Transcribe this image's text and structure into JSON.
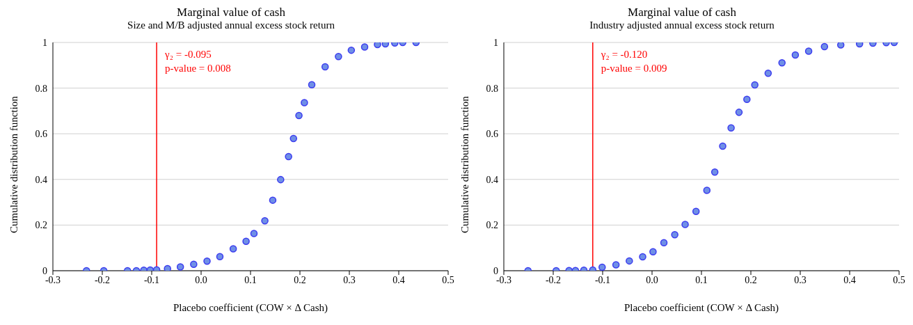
{
  "chart_data": [
    {
      "type": "scatter",
      "title": "Marginal  value of cash",
      "subtitle": "Size and M/B adjusted annual excess stock return",
      "xlabel": "Placebo coefficient (COW × Δ Cash)",
      "ylabel": "Cumulative distribution function",
      "xlim": [
        -0.3,
        0.5
      ],
      "xticks": [
        -0.3,
        -0.2,
        -0.1,
        {
          "value": 0,
          "label": "0.0"
        },
        0.1,
        0.2,
        0.3,
        0.4,
        0.5
      ],
      "ylim": [
        0,
        1
      ],
      "yticks": [
        0,
        0.2,
        0.4,
        0.6,
        0.8,
        1
      ],
      "grid": "y",
      "marker": "circle",
      "series": [
        {
          "color": "#3b3bf0",
          "x": [
            -0.232,
            -0.197,
            -0.149,
            -0.131,
            -0.116,
            -0.103,
            -0.09,
            -0.068,
            -0.042,
            -0.015,
            0.012,
            0.038,
            0.065,
            0.091,
            0.107,
            0.129,
            0.145,
            0.161,
            0.177,
            0.187,
            0.198,
            0.209,
            0.224,
            0.251,
            0.278,
            0.304,
            0.331,
            0.357,
            0.373,
            0.392,
            0.408,
            0.435
          ],
          "values": [
            0,
            0,
            0,
            0,
            0.002,
            0.003,
            0.004,
            0.009,
            0.017,
            0.028,
            0.042,
            0.062,
            0.096,
            0.129,
            0.163,
            0.219,
            0.309,
            0.399,
            0.5,
            0.579,
            0.68,
            0.736,
            0.815,
            0.893,
            0.938,
            0.966,
            0.98,
            0.991,
            0.994,
            0.998,
            1,
            1
          ]
        }
      ],
      "ref_lines": [
        {
          "axis": "x",
          "value": -0.09,
          "color": "#ff0000"
        }
      ],
      "annotations": [
        "γ₂ = -0.095",
        "p-value = 0.008"
      ]
    },
    {
      "type": "scatter",
      "title": "Marginal  value of cash",
      "subtitle": "Industry adjusted annual excess stock return",
      "xlabel": "Placebo coefficient (COW × Δ Cash)",
      "ylabel": "Cumulative distribution function",
      "xlim": [
        -0.3,
        0.5
      ],
      "xticks": [
        -0.3,
        -0.2,
        -0.1,
        {
          "value": 0,
          "label": "0.0"
        },
        0.1,
        0.2,
        0.3,
        0.4,
        0.5
      ],
      "ylim": [
        0,
        1
      ],
      "yticks": [
        0,
        0.2,
        0.4,
        0.6,
        0.8,
        1
      ],
      "grid": "y",
      "marker": "circle",
      "series": [
        {
          "color": "#3b3bf0",
          "x": [
            -0.251,
            -0.194,
            -0.168,
            -0.155,
            -0.138,
            -0.12,
            -0.101,
            -0.073,
            -0.046,
            -0.019,
            0.002,
            0.024,
            0.046,
            0.067,
            0.089,
            0.111,
            0.127,
            0.143,
            0.16,
            0.176,
            0.192,
            0.208,
            0.235,
            0.263,
            0.29,
            0.317,
            0.349,
            0.382,
            0.42,
            0.447,
            0.474,
            0.49
          ],
          "values": [
            0,
            0,
            0.001,
            0.001,
            0.002,
            0.003,
            0.015,
            0.026,
            0.043,
            0.061,
            0.083,
            0.123,
            0.158,
            0.203,
            0.26,
            0.352,
            0.432,
            0.546,
            0.626,
            0.694,
            0.751,
            0.814,
            0.865,
            0.911,
            0.945,
            0.962,
            0.982,
            0.989,
            0.994,
            0.997,
            0.999,
            1
          ]
        }
      ],
      "ref_lines": [
        {
          "axis": "x",
          "value": -0.12,
          "color": "#ff0000"
        }
      ],
      "annotations": [
        "γ₂ = -0.120",
        "p-value = 0.009"
      ]
    }
  ]
}
